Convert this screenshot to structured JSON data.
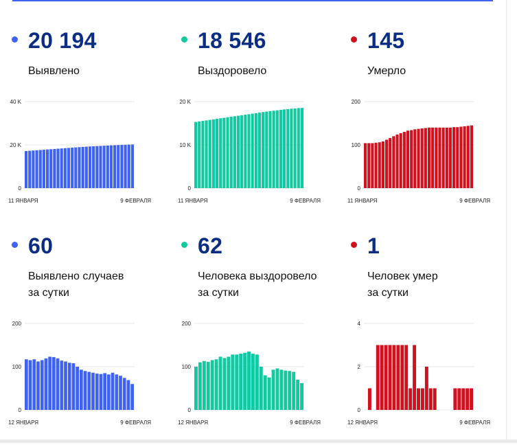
{
  "colors": {
    "blue": "#3d63f0",
    "green": "#12c9a0",
    "red": "#d0121f",
    "value": "#0c2d84"
  },
  "cards": [
    {
      "value": "20 194",
      "caption": "Выявлено",
      "color": "#3d63f0",
      "chart_data": {
        "type": "bar",
        "x_start_label": "11 ЯНВАРЯ",
        "x_end_label": "9 ФЕВРАЛЯ",
        "y_ticks": [
          "0",
          "20 K",
          "40 K"
        ],
        "ylim": [
          0,
          40000
        ],
        "values": [
          17150,
          17280,
          17400,
          17520,
          17640,
          17760,
          17880,
          18000,
          18120,
          18240,
          18360,
          18480,
          18600,
          18720,
          18840,
          18960,
          19080,
          19180,
          19280,
          19360,
          19440,
          19520,
          19600,
          19680,
          19760,
          19840,
          19920,
          19990,
          20060,
          20130,
          20194
        ]
      }
    },
    {
      "value": "18 546",
      "caption": "Выздоровело",
      "color": "#12c9a0",
      "chart_data": {
        "type": "bar",
        "x_start_label": "11 ЯНВАРЯ",
        "x_end_label": "9 ФЕВРАЛЯ",
        "y_ticks": [
          "0",
          "10 K",
          "20 K"
        ],
        "ylim": [
          0,
          20000
        ],
        "values": [
          15300,
          15420,
          15540,
          15660,
          15780,
          15900,
          16020,
          16140,
          16260,
          16380,
          16500,
          16620,
          16740,
          16860,
          16980,
          17100,
          17220,
          17340,
          17460,
          17580,
          17700,
          17800,
          17900,
          18000,
          18100,
          18190,
          18280,
          18360,
          18430,
          18500,
          18546
        ]
      }
    },
    {
      "value": "145",
      "caption": "Умерло",
      "color": "#d0121f",
      "chart_data": {
        "type": "bar",
        "x_start_label": "11 ЯНВАРЯ",
        "x_end_label": "9 ФЕВРАЛЯ",
        "y_ticks": [
          "0",
          "100",
          "200"
        ],
        "ylim": [
          0,
          200
        ],
        "values": [
          104,
          104,
          104,
          105,
          106,
          108,
          112,
          116,
          120,
          124,
          127,
          130,
          133,
          134,
          136,
          137,
          138,
          139,
          140,
          140,
          140,
          140,
          140,
          140,
          140,
          141,
          141,
          142,
          143,
          144,
          145
        ]
      }
    },
    {
      "value": "60",
      "caption": "Выявлено случаев за сутки",
      "color": "#3d63f0",
      "chart_data": {
        "type": "bar",
        "x_start_label": "12 ЯНВАРЯ",
        "x_end_label": "9 ФЕВРАЛЯ",
        "y_ticks": [
          "0",
          "100",
          "200"
        ],
        "ylim": [
          0,
          200
        ],
        "values": [
          117,
          115,
          117,
          112,
          115,
          119,
          123,
          122,
          119,
          114,
          112,
          109,
          108,
          100,
          93,
          90,
          88,
          86,
          84,
          83,
          85,
          82,
          86,
          82,
          79,
          74,
          69,
          60
        ]
      }
    },
    {
      "value": "62",
      "caption": "Человека выздоровело за сутки",
      "color": "#12c9a0",
      "chart_data": {
        "type": "bar",
        "x_start_label": "12 ЯНВАРЯ",
        "x_end_label": "9 ФЕВРАЛЯ",
        "y_ticks": [
          "0",
          "100",
          "200"
        ],
        "ylim": [
          0,
          200
        ],
        "values": [
          100,
          110,
          113,
          111,
          115,
          117,
          123,
          120,
          123,
          128,
          128,
          130,
          132,
          135,
          130,
          128,
          100,
          80,
          75,
          93,
          96,
          93,
          91,
          90,
          88,
          70,
          62
        ]
      }
    },
    {
      "value": "1",
      "caption": "Человек умер за сутки",
      "color": "#d0121f",
      "chart_data": {
        "type": "bar",
        "x_start_label": "12 ЯНВАРЯ",
        "x_end_label": "9 ФЕВРАЛЯ",
        "y_ticks": [
          "0",
          "2",
          "4"
        ],
        "ylim": [
          0,
          4
        ],
        "values": [
          0,
          1,
          0,
          3,
          3,
          3,
          3,
          3,
          3,
          3,
          3,
          1,
          3,
          1,
          1,
          2,
          1,
          1,
          0,
          0,
          0,
          0,
          1,
          1,
          1,
          1,
          1
        ]
      }
    }
  ]
}
